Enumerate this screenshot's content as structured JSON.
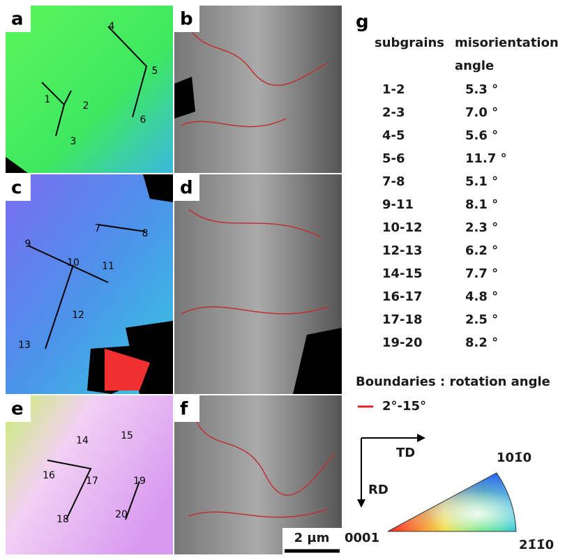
{
  "panels": {
    "a": "a",
    "b": "b",
    "c": "c",
    "d": "d",
    "e": "e",
    "f": "f",
    "g": "g"
  },
  "markers": [
    "1",
    "2",
    "3",
    "4",
    "5",
    "6",
    "7",
    "8",
    "9",
    "10",
    "11",
    "12",
    "13",
    "14",
    "15",
    "16",
    "17",
    "18",
    "19",
    "20"
  ],
  "table": {
    "header": [
      "subgrains",
      "misorientation",
      "angle"
    ],
    "rows": [
      [
        "1-2",
        "5.3 °"
      ],
      [
        "2-3",
        "7.0 °"
      ],
      [
        "4-5",
        "5.6 °"
      ],
      [
        "5-6",
        "11.7 °"
      ],
      [
        "7-8",
        "5.1 °"
      ],
      [
        "9-11",
        "8.1 °"
      ],
      [
        "10-12",
        "2.3 °"
      ],
      [
        "12-13",
        "6.2 °"
      ],
      [
        "14-15",
        "7.7 °"
      ],
      [
        "16-17",
        "4.8 °"
      ],
      [
        "17-18",
        "2.5 °"
      ],
      [
        "19-20",
        "8.2 °"
      ]
    ]
  },
  "legend": {
    "title": "Boundaries : rotation angle",
    "entry": "2°-15°"
  },
  "axes": {
    "x": "TD",
    "y": "RD"
  },
  "triangle": {
    "origin": "0001",
    "top": "101̄0",
    "right": "21̄1̄0"
  },
  "scale_bar": "2 µm"
}
